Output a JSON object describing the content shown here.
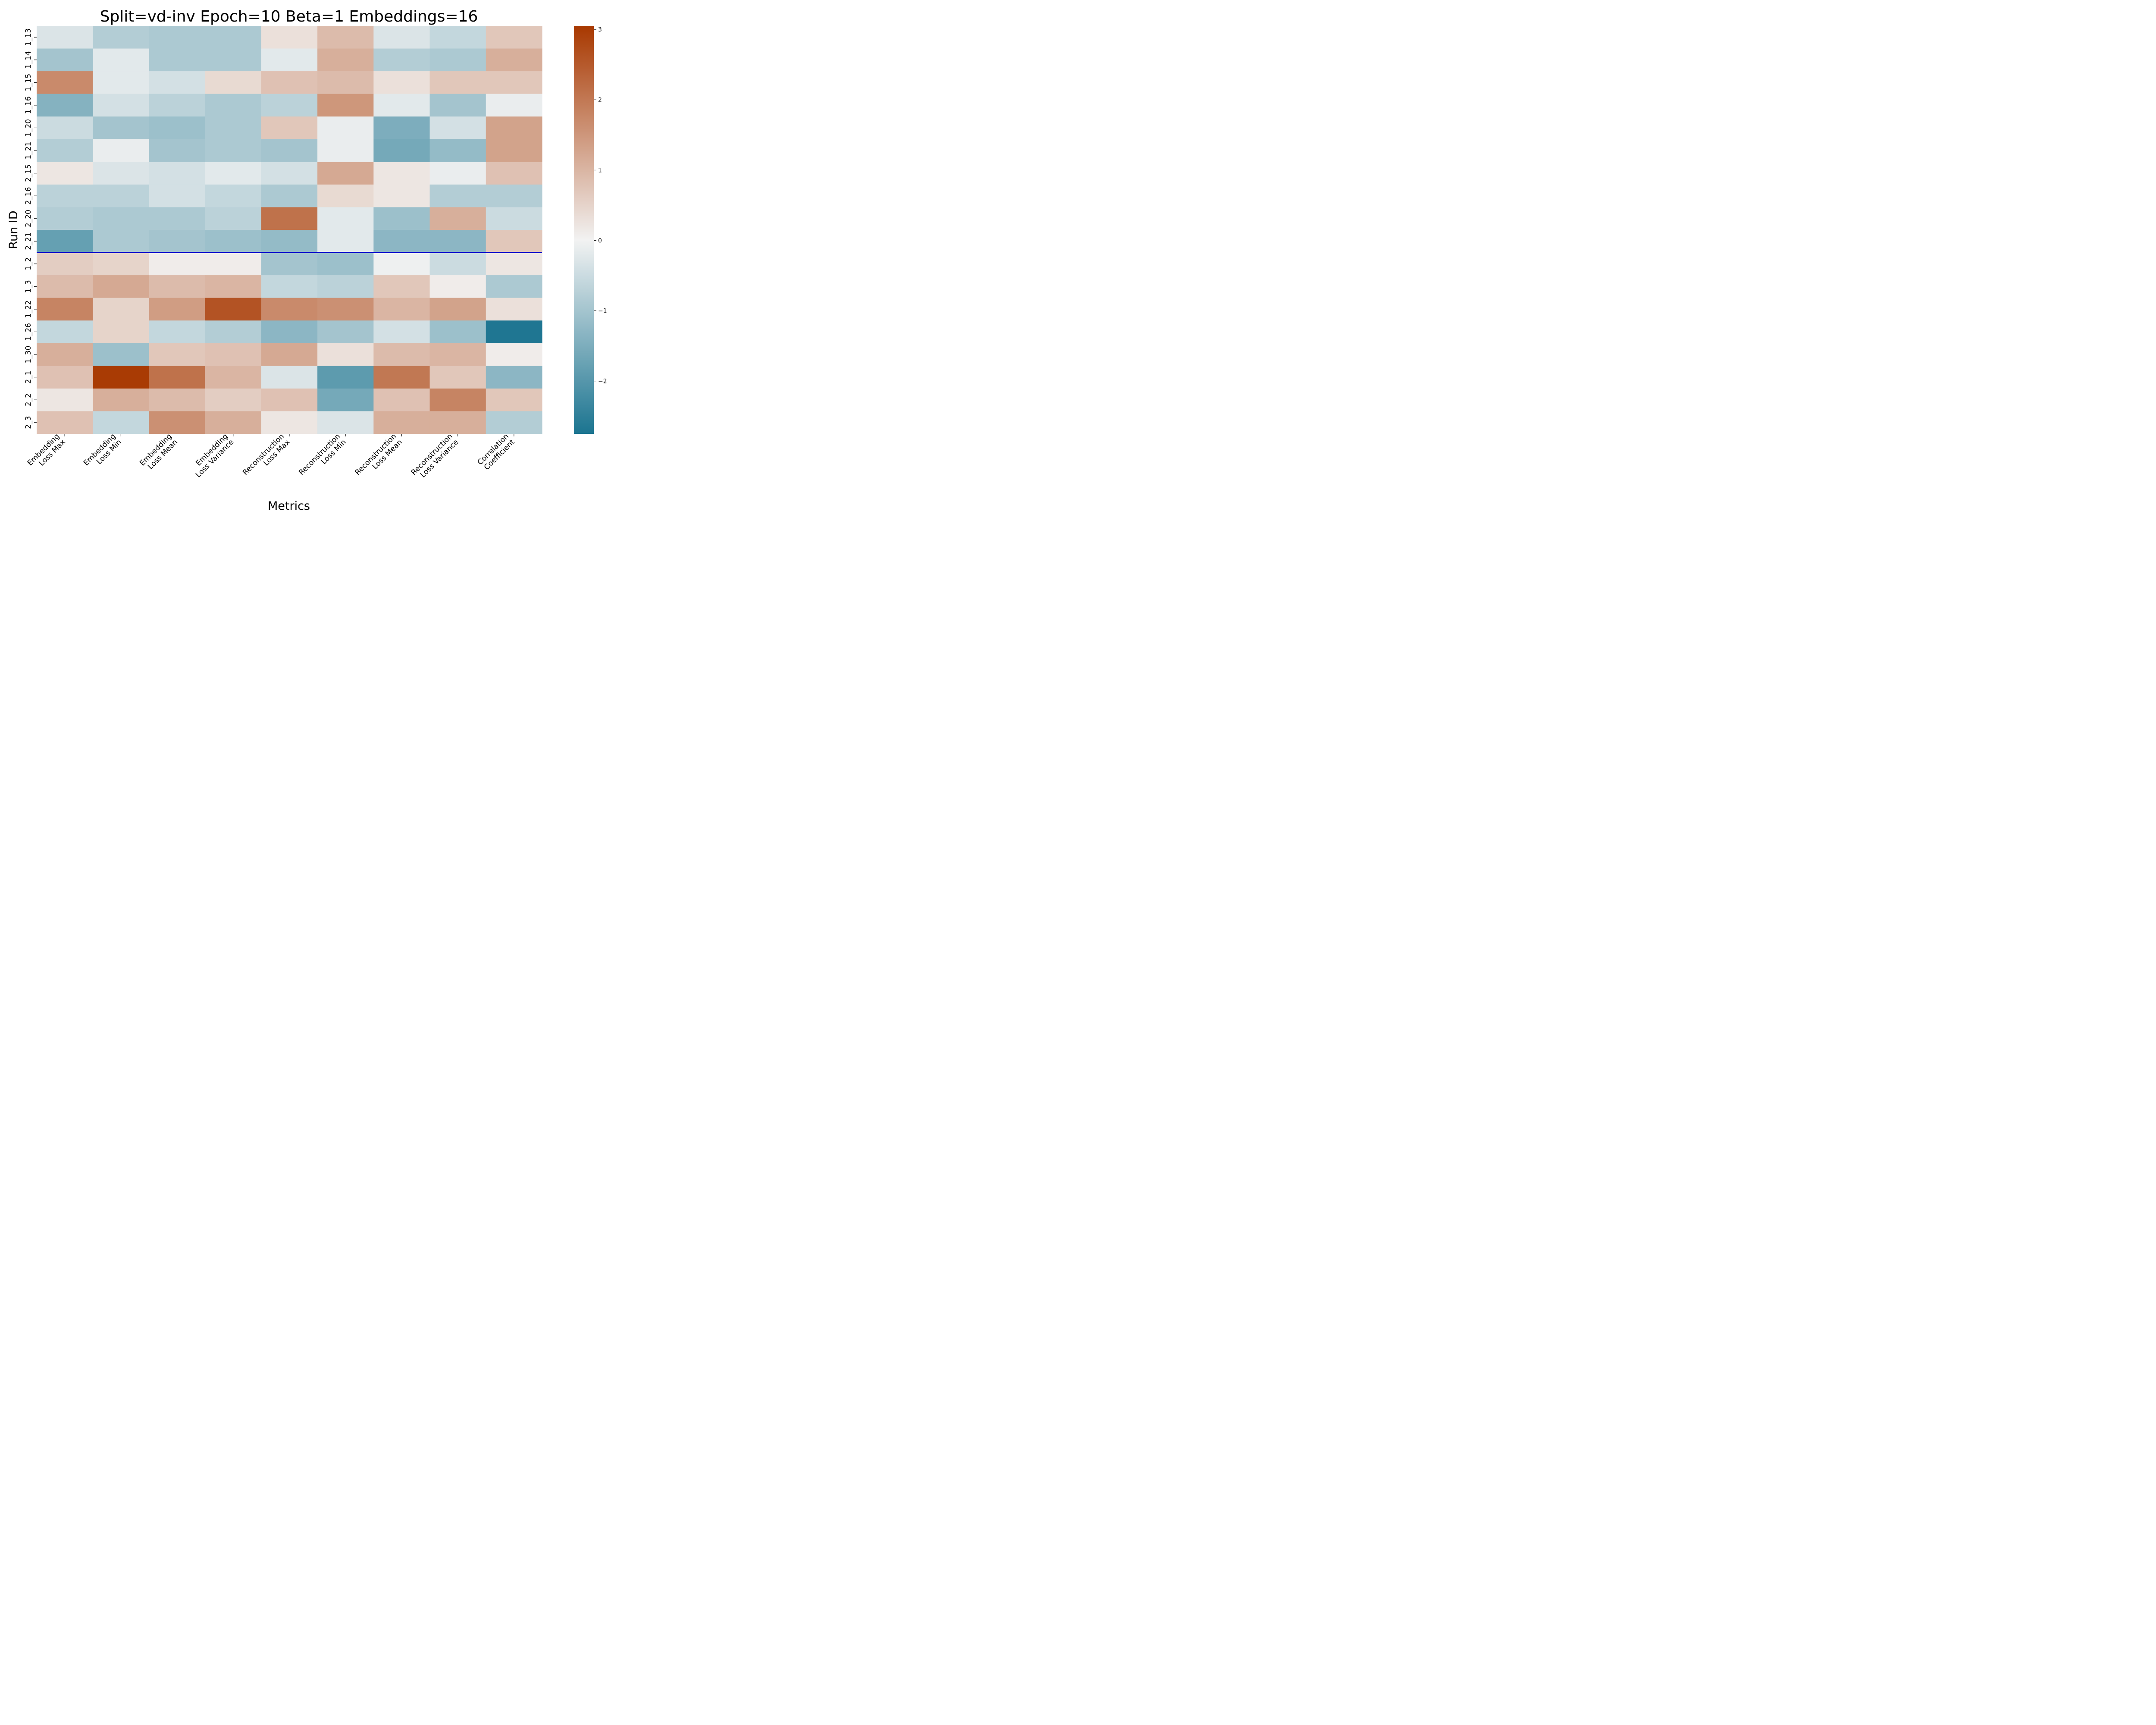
{
  "chart_data": {
    "type": "heatmap",
    "title": "Split=vd-inv Epoch=10 Beta=1 Embeddings=16",
    "xlabel": "Metrics",
    "ylabel": "Run ID",
    "columns": [
      [
        "Embedding",
        "Loss Max"
      ],
      [
        "Embedding",
        "Loss Min"
      ],
      [
        "Embedding",
        "Loss Mean"
      ],
      [
        "Embedding",
        "Loss Variance"
      ],
      [
        "Reconstruction",
        "Loss Max"
      ],
      [
        "Reconstruction",
        "Loss Min"
      ],
      [
        "Reconstruction",
        "Loss Mean"
      ],
      [
        "Reconstruction",
        "Loss Variance"
      ],
      [
        "Correlation",
        "Coefficient"
      ]
    ],
    "rows": [
      "1_13",
      "1_14",
      "1_15",
      "1_16",
      "1_20",
      "1_21",
      "2_15",
      "2_16",
      "2_20",
      "2_21",
      "1_2",
      "1_3",
      "1_22",
      "1_26",
      "1_30",
      "2_1",
      "2_2",
      "2_3"
    ],
    "values": [
      [
        -0.3,
        -0.8,
        -0.9,
        -0.9,
        0.3,
        0.9,
        -0.3,
        -0.6,
        0.7
      ],
      [
        -1.0,
        -0.2,
        -0.9,
        -0.9,
        -0.2,
        1.1,
        -0.8,
        -0.9,
        1.1
      ],
      [
        1.7,
        -0.2,
        -0.4,
        0.4,
        0.8,
        0.9,
        0.3,
        0.7,
        0.7
      ],
      [
        -1.4,
        -0.4,
        -0.7,
        -0.9,
        -0.7,
        1.5,
        -0.2,
        -1.0,
        -0.1
      ],
      [
        -0.5,
        -1.0,
        -1.1,
        -0.9,
        0.7,
        -0.1,
        -1.5,
        -0.4,
        1.3
      ],
      [
        -0.8,
        -0.1,
        -1.0,
        -0.9,
        -1.0,
        -0.1,
        -1.6,
        -1.2,
        1.3
      ],
      [
        0.2,
        -0.3,
        -0.4,
        -0.2,
        -0.4,
        1.2,
        0.2,
        -0.1,
        0.8
      ],
      [
        -0.7,
        -0.7,
        -0.4,
        -0.6,
        -0.9,
        0.4,
        0.2,
        -0.8,
        -0.8
      ],
      [
        -0.8,
        -0.9,
        -0.9,
        -0.7,
        2.1,
        -0.2,
        -1.1,
        1.1,
        -0.5
      ],
      [
        -1.8,
        -0.9,
        -1.0,
        -1.1,
        -1.2,
        -0.2,
        -1.3,
        -1.3,
        0.7
      ],
      [
        0.6,
        0.5,
        0.1,
        0.1,
        -1.0,
        -1.1,
        -0.05,
        -0.5,
        0.2
      ],
      [
        0.9,
        1.2,
        0.9,
        1.0,
        -0.6,
        -0.7,
        0.7,
        0.1,
        -0.9
      ],
      [
        1.8,
        0.5,
        1.4,
        2.6,
        1.7,
        1.6,
        1.0,
        1.3,
        0.3
      ],
      [
        -0.6,
        0.5,
        -0.6,
        -0.8,
        -1.3,
        -1.0,
        -0.4,
        -1.1,
        -2.7
      ],
      [
        1.1,
        -1.1,
        0.7,
        0.8,
        1.2,
        0.3,
        0.9,
        1.0,
        0.1
      ],
      [
        0.8,
        3.0,
        2.1,
        1.0,
        -0.3,
        -1.9,
        2.0,
        0.7,
        -1.3
      ],
      [
        0.2,
        1.1,
        0.9,
        0.6,
        0.8,
        -1.6,
        0.8,
        1.8,
        0.7
      ],
      [
        0.8,
        -0.6,
        1.6,
        1.1,
        0.2,
        -0.3,
        1.1,
        1.1,
        -0.8
      ]
    ],
    "vmin": -2.75,
    "vmax": 3.05,
    "colorbar_ticks": [
      "−2",
      "−1",
      "0",
      "1",
      "2",
      "3"
    ],
    "colorbar_tick_values": [
      -2,
      -1,
      0,
      1,
      2,
      3
    ],
    "colormap": {
      "negative_end": "#1b7490",
      "center": "#f2f2f2",
      "positive_end": "#a83800"
    },
    "separator_after_row": "2_21",
    "separator_color": "#0000cc"
  }
}
